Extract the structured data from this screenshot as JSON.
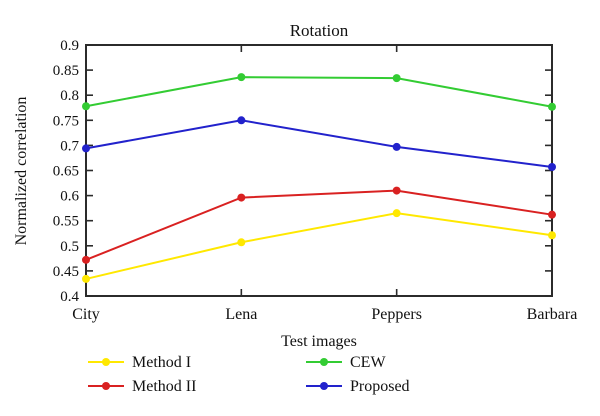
{
  "figure": {
    "background": "#ffffff"
  },
  "chart_data": {
    "type": "line",
    "title": "Rotation",
    "xlabel": "Test images",
    "ylabel": "Normalized correlation",
    "categories": [
      "City",
      "Lena",
      "Peppers",
      "Barbara"
    ],
    "series": [
      {
        "name": "Method I",
        "color": "#ffe800",
        "values": [
          0.434,
          0.507,
          0.565,
          0.521
        ]
      },
      {
        "name": "Method II",
        "color": "#d92121",
        "values": [
          0.472,
          0.596,
          0.61,
          0.562
        ]
      },
      {
        "name": "CEW",
        "color": "#33cc33",
        "values": [
          0.778,
          0.836,
          0.834,
          0.777
        ]
      },
      {
        "name": "Proposed",
        "color": "#2222cc",
        "values": [
          0.694,
          0.75,
          0.697,
          0.657
        ]
      }
    ],
    "ylim": [
      0.4,
      0.9
    ],
    "ytick_labels": [
      "0.4",
      "0.45",
      "0.5",
      "0.55",
      "0.6",
      "0.65",
      "0.7",
      "0.75",
      "0.8",
      "0.85",
      "0.9"
    ],
    "grid": false,
    "legend_position": "below",
    "legend_columns": [
      [
        "Method I",
        "Method II"
      ],
      [
        "CEW",
        "Proposed"
      ]
    ],
    "axis_color": "#2b2b2b",
    "text_color": "#111111"
  }
}
